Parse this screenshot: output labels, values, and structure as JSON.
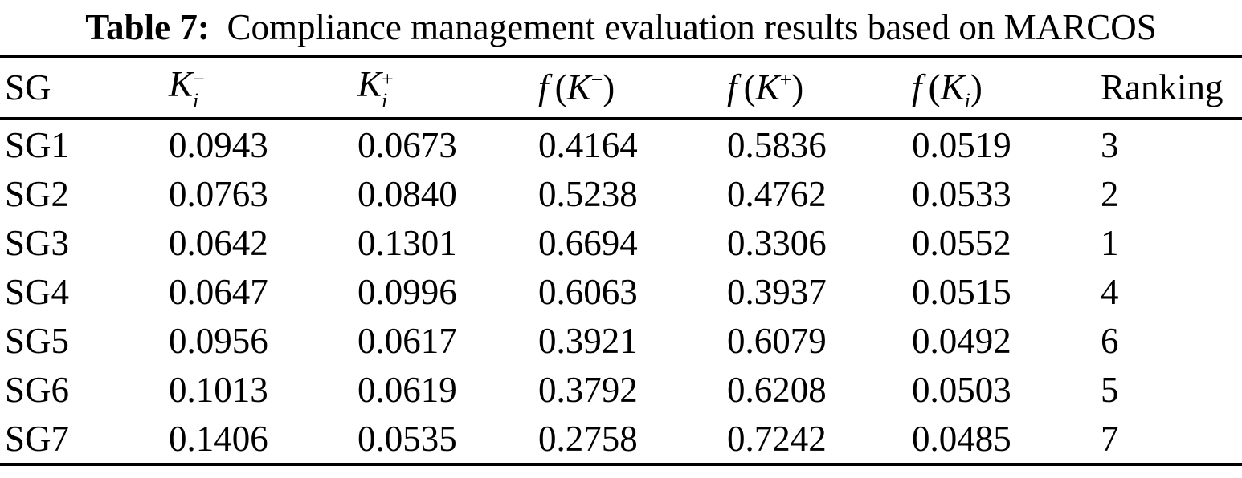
{
  "caption": {
    "label": "Table 7:",
    "text": "Compliance management evaluation results based on MARCOS"
  },
  "table": {
    "headers": {
      "sg": "SG",
      "ki_minus": {
        "base": "K",
        "sup": "−",
        "sub": "i"
      },
      "ki_plus": {
        "base": "K",
        "sup": "+",
        "sub": "i"
      },
      "f_k_minus": {
        "func": "f",
        "open": "(",
        "base": "K",
        "sup": "−",
        "close": ")"
      },
      "f_k_plus": {
        "func": "f",
        "open": "(",
        "base": "K",
        "sup": "+",
        "close": ")"
      },
      "f_k_i": {
        "func": "f",
        "open": "(",
        "base": "K",
        "sub": "i",
        "close": ")"
      },
      "ranking": "Ranking"
    },
    "rows": [
      {
        "sg": "SG1",
        "ki_minus": "0.0943",
        "ki_plus": "0.0673",
        "f_k_minus": "0.4164",
        "f_k_plus": "0.5836",
        "f_k_i": "0.0519",
        "ranking": "3"
      },
      {
        "sg": "SG2",
        "ki_minus": "0.0763",
        "ki_plus": "0.0840",
        "f_k_minus": "0.5238",
        "f_k_plus": "0.4762",
        "f_k_i": "0.0533",
        "ranking": "2"
      },
      {
        "sg": "SG3",
        "ki_minus": "0.0642",
        "ki_plus": "0.1301",
        "f_k_minus": "0.6694",
        "f_k_plus": "0.3306",
        "f_k_i": "0.0552",
        "ranking": "1"
      },
      {
        "sg": "SG4",
        "ki_minus": "0.0647",
        "ki_plus": "0.0996",
        "f_k_minus": "0.6063",
        "f_k_plus": "0.3937",
        "f_k_i": "0.0515",
        "ranking": "4"
      },
      {
        "sg": "SG5",
        "ki_minus": "0.0956",
        "ki_plus": "0.0617",
        "f_k_minus": "0.3921",
        "f_k_plus": "0.6079",
        "f_k_i": "0.0492",
        "ranking": "6"
      },
      {
        "sg": "SG6",
        "ki_minus": "0.1013",
        "ki_plus": "0.0619",
        "f_k_minus": "0.3792",
        "f_k_plus": "0.6208",
        "f_k_i": "0.0503",
        "ranking": "5"
      },
      {
        "sg": "SG7",
        "ki_minus": "0.1406",
        "ki_plus": "0.0535",
        "f_k_minus": "0.2758",
        "f_k_plus": "0.7242",
        "f_k_i": "0.0485",
        "ranking": "7"
      }
    ]
  }
}
